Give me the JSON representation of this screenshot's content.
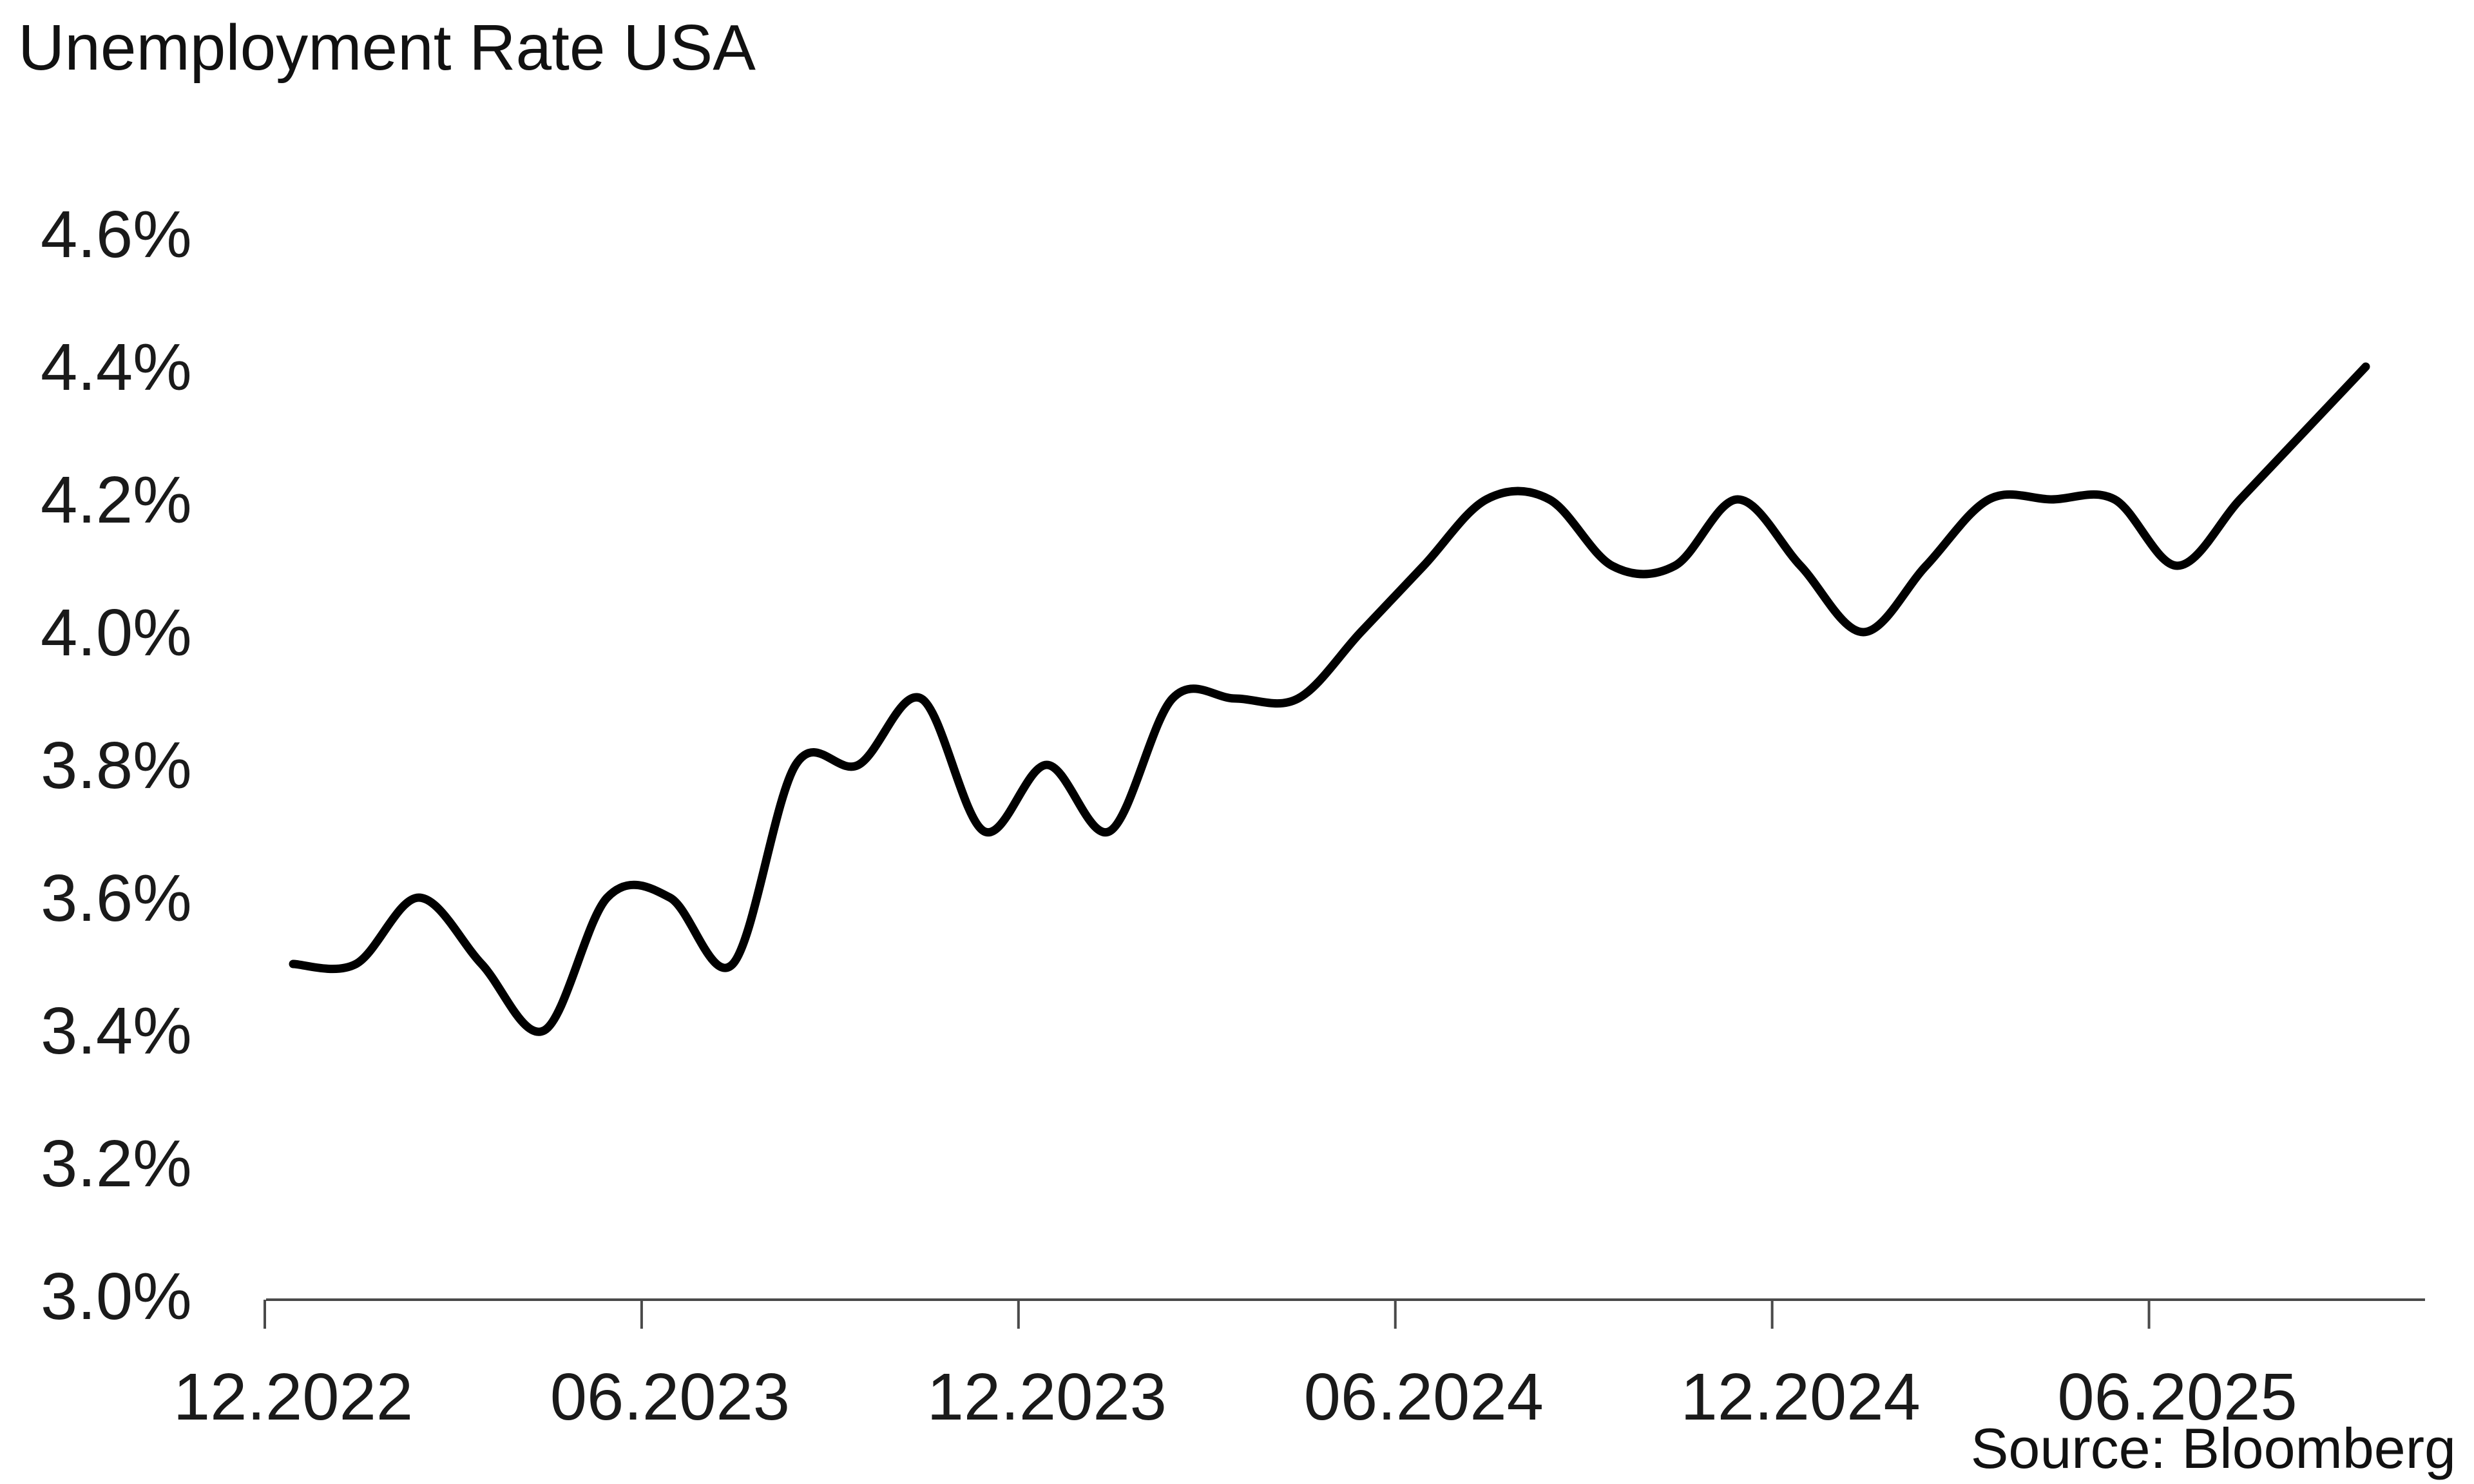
{
  "title": "Unemployment Rate USA",
  "source": "Source: Bloomberg",
  "chart_data": {
    "type": "line",
    "title": "Unemployment Rate USA",
    "xlabel": "",
    "ylabel": "",
    "legend": "none",
    "grid": false,
    "line_color": "#000000",
    "axis_color": "#4a4a4a",
    "text_color": "#111111",
    "ylim": [
      3.0,
      4.72
    ],
    "y_tick_labels": [
      "4.6%",
      "4.4%",
      "4.2%",
      "4.0%",
      "3.8%",
      "3.6%",
      "3.4%",
      "3.2%",
      "3.0%"
    ],
    "y_tick_values": [
      4.6,
      4.4,
      4.2,
      4.0,
      3.8,
      3.6,
      3.4,
      3.2,
      3.0
    ],
    "x_tick_labels": [
      "12.2022",
      "06.2023",
      "12.2023",
      "06.2024",
      "12.2024",
      "06.2025"
    ],
    "x_tick_month_indices": [
      0,
      6,
      12,
      18,
      24,
      30
    ],
    "x": [
      "12.2022",
      "01.2023",
      "02.2023",
      "03.2023",
      "04.2023",
      "05.2023",
      "06.2023",
      "07.2023",
      "08.2023",
      "09.2023",
      "10.2023",
      "11.2023",
      "12.2023",
      "01.2024",
      "02.2024",
      "03.2024",
      "04.2024",
      "05.2024",
      "06.2024",
      "07.2024",
      "08.2024",
      "09.2024",
      "10.2024",
      "11.2024",
      "12.2024",
      "01.2025",
      "02.2025",
      "03.2025",
      "04.2025",
      "05.2025",
      "06.2025",
      "07.2025",
      "08.2025",
      "09.2025"
    ],
    "values": [
      3.5,
      3.5,
      3.6,
      3.5,
      3.4,
      3.6,
      3.6,
      3.5,
      3.8,
      3.8,
      3.9,
      3.7,
      3.8,
      3.7,
      3.9,
      3.9,
      3.9,
      4.0,
      4.1,
      4.2,
      4.2,
      4.1,
      4.1,
      4.2,
      4.1,
      4.0,
      4.1,
      4.2,
      4.2,
      4.2,
      4.1,
      4.2,
      4.3,
      4.4
    ]
  }
}
